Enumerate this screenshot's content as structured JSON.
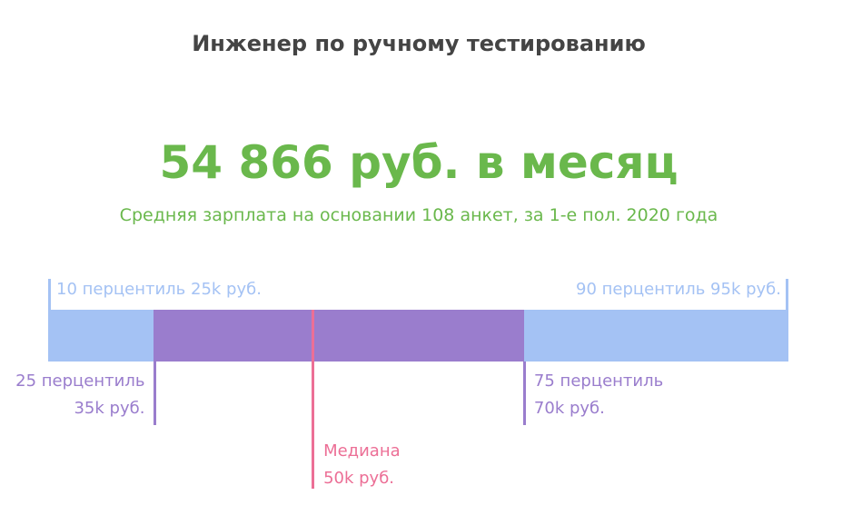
{
  "title": "Инженер по ручному тестированию",
  "amount": "54 866 руб. в месяц",
  "subtitle": "Средняя зарплата на основании 108 анкет, за 1-е пол. 2020 года",
  "chart_data": {
    "type": "range",
    "unit": "k руб.",
    "p10": {
      "value": 25,
      "label1": "10 перцентиль 25k руб."
    },
    "p25": {
      "value": 35,
      "label1": "25 перцентиль",
      "label2": "35k руб."
    },
    "median": {
      "value": 50,
      "label1": "Медиана",
      "label2": "50k руб."
    },
    "p75": {
      "value": 70,
      "label1": "75 перцентиль",
      "label2": "70k руб."
    },
    "p90": {
      "value": 95,
      "label1": "90 перцентиль 95k руб."
    },
    "colors": {
      "outer": "#a4c2f4",
      "inner": "#9a7dcd",
      "median": "#ec6f96",
      "text_outer": "#a4c2f4"
    }
  }
}
